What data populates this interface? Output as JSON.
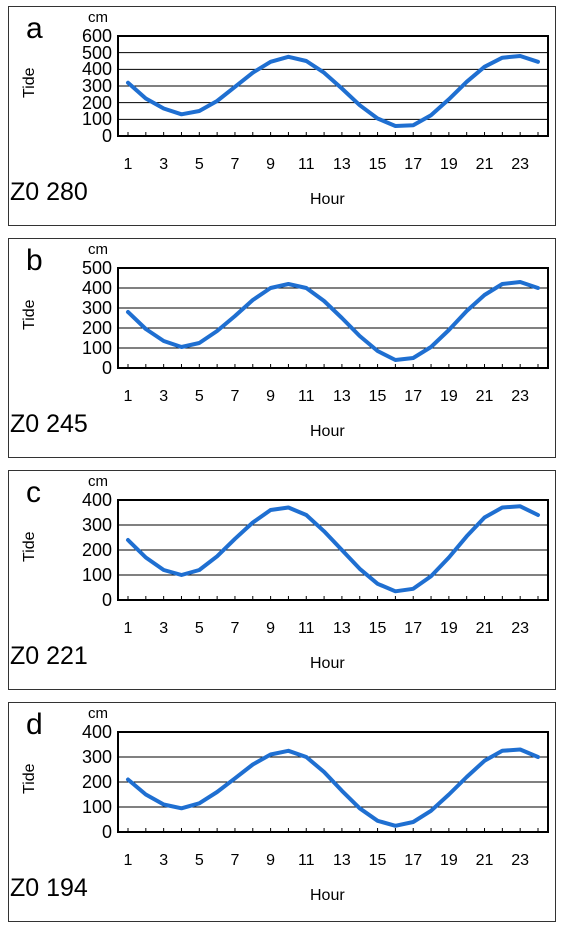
{
  "chart_data": [
    {
      "panel": "a",
      "type": "line",
      "unit": "cm",
      "ylabel": "Tide",
      "xlabel": "Hour",
      "station_label": "Z0 280",
      "ylim": [
        0,
        600
      ],
      "yticks": [
        0,
        100,
        200,
        300,
        400,
        500,
        600
      ],
      "xticks": [
        1,
        3,
        5,
        7,
        9,
        11,
        13,
        15,
        17,
        19,
        21,
        23
      ],
      "xlim": [
        1,
        24
      ],
      "grid": "horizontal",
      "line_color": "#1f6fd1",
      "x": [
        1,
        2,
        3,
        4,
        5,
        6,
        7,
        8,
        9,
        10,
        11,
        12,
        13,
        14,
        15,
        16,
        17,
        18,
        19,
        20,
        21,
        22,
        23,
        24
      ],
      "values": [
        320,
        225,
        165,
        130,
        150,
        210,
        295,
        380,
        445,
        475,
        450,
        380,
        285,
        185,
        105,
        60,
        65,
        125,
        220,
        325,
        415,
        470,
        480,
        445
      ]
    },
    {
      "panel": "b",
      "type": "line",
      "unit": "cm",
      "ylabel": "Tide",
      "xlabel": "Hour",
      "station_label": "Z0 245",
      "ylim": [
        0,
        500
      ],
      "yticks": [
        0,
        100,
        200,
        300,
        400,
        500
      ],
      "xticks": [
        1,
        3,
        5,
        7,
        9,
        11,
        13,
        15,
        17,
        19,
        21,
        23
      ],
      "xlim": [
        1,
        24
      ],
      "grid": "horizontal",
      "line_color": "#1f6fd1",
      "x": [
        1,
        2,
        3,
        4,
        5,
        6,
        7,
        8,
        9,
        10,
        11,
        12,
        13,
        14,
        15,
        16,
        17,
        18,
        19,
        20,
        21,
        22,
        23,
        24
      ],
      "values": [
        280,
        195,
        135,
        105,
        125,
        185,
        260,
        340,
        400,
        420,
        400,
        335,
        250,
        160,
        85,
        40,
        50,
        105,
        190,
        285,
        365,
        420,
        430,
        400
      ]
    },
    {
      "panel": "c",
      "type": "line",
      "unit": "cm",
      "ylabel": "Tide",
      "xlabel": "Hour",
      "station_label": "Z0 221",
      "ylim": [
        0,
        400
      ],
      "yticks": [
        0,
        100,
        200,
        300,
        400
      ],
      "xticks": [
        1,
        3,
        5,
        7,
        9,
        11,
        13,
        15,
        17,
        19,
        21,
        23
      ],
      "xlim": [
        1,
        24
      ],
      "grid": "horizontal",
      "line_color": "#1f6fd1",
      "x": [
        1,
        2,
        3,
        4,
        5,
        6,
        7,
        8,
        9,
        10,
        11,
        12,
        13,
        14,
        15,
        16,
        17,
        18,
        19,
        20,
        21,
        22,
        23,
        24
      ],
      "values": [
        240,
        170,
        120,
        100,
        120,
        175,
        245,
        310,
        360,
        370,
        340,
        275,
        200,
        125,
        65,
        35,
        45,
        95,
        170,
        255,
        330,
        370,
        375,
        340
      ]
    },
    {
      "panel": "d",
      "type": "line",
      "unit": "cm",
      "ylabel": "Tide",
      "xlabel": "Hour",
      "station_label": "Z0 194",
      "ylim": [
        0,
        400
      ],
      "yticks": [
        0,
        100,
        200,
        300,
        400
      ],
      "xticks": [
        1,
        3,
        5,
        7,
        9,
        11,
        13,
        15,
        17,
        19,
        21,
        23
      ],
      "xlim": [
        1,
        24
      ],
      "grid": "horizontal",
      "line_color": "#1f6fd1",
      "x": [
        1,
        2,
        3,
        4,
        5,
        6,
        7,
        8,
        9,
        10,
        11,
        12,
        13,
        14,
        15,
        16,
        17,
        18,
        19,
        20,
        21,
        22,
        23,
        24
      ],
      "values": [
        210,
        150,
        110,
        95,
        115,
        160,
        215,
        270,
        310,
        325,
        300,
        240,
        165,
        95,
        45,
        25,
        40,
        85,
        150,
        220,
        285,
        325,
        330,
        300
      ]
    }
  ]
}
